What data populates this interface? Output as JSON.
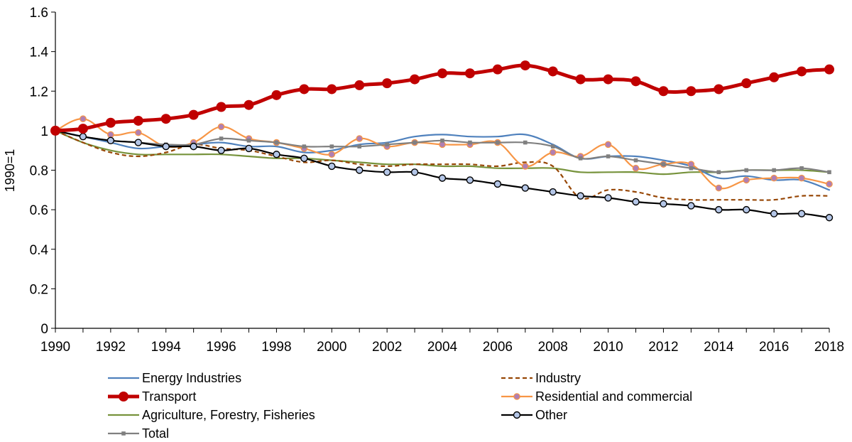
{
  "chart_data": {
    "type": "line",
    "title": "",
    "xlabel": "",
    "ylabel": "1990=1",
    "xlim": [
      1990,
      2018
    ],
    "ylim": [
      0,
      1.6
    ],
    "y_ticks": [
      "0",
      "0.2",
      "0.4",
      "0.6",
      "0.8",
      "1",
      "1.2",
      "1.4",
      "1.6"
    ],
    "x_ticks": [
      "1990",
      "1992",
      "1994",
      "1996",
      "1998",
      "2000",
      "2002",
      "2004",
      "2006",
      "2008",
      "2010",
      "2012",
      "2014",
      "2016",
      "2018"
    ],
    "grid": false,
    "legend_position": "bottom",
    "x": [
      1990,
      1991,
      1992,
      1993,
      1994,
      1995,
      1996,
      1997,
      1998,
      1999,
      2000,
      2001,
      2002,
      2003,
      2004,
      2005,
      2006,
      2007,
      2008,
      2009,
      2010,
      2011,
      2012,
      2013,
      2014,
      2015,
      2016,
      2017,
      2018
    ],
    "series": [
      {
        "name": "Energy Industries",
        "color": "#4f81bd",
        "style": "solid",
        "marker": "none",
        "values": [
          1.0,
          0.97,
          0.94,
          0.91,
          0.92,
          0.93,
          0.94,
          0.92,
          0.92,
          0.89,
          0.9,
          0.93,
          0.94,
          0.97,
          0.98,
          0.97,
          0.97,
          0.98,
          0.93,
          0.86,
          0.87,
          0.87,
          0.85,
          0.82,
          0.76,
          0.77,
          0.75,
          0.75,
          0.7
        ]
      },
      {
        "name": "Industry",
        "color": "#974706",
        "style": "dashed",
        "marker": "none",
        "values": [
          1.0,
          0.94,
          0.89,
          0.87,
          0.89,
          0.93,
          0.91,
          0.9,
          0.87,
          0.84,
          0.85,
          0.83,
          0.82,
          0.83,
          0.83,
          0.83,
          0.82,
          0.84,
          0.82,
          0.66,
          0.7,
          0.69,
          0.66,
          0.65,
          0.65,
          0.65,
          0.65,
          0.67,
          0.67
        ]
      },
      {
        "name": "Transport",
        "color": "#c00000",
        "style": "solid",
        "marker": "circle-large",
        "values": [
          1.0,
          1.01,
          1.04,
          1.05,
          1.06,
          1.08,
          1.12,
          1.13,
          1.18,
          1.21,
          1.21,
          1.23,
          1.24,
          1.26,
          1.29,
          1.29,
          1.31,
          1.33,
          1.3,
          1.26,
          1.26,
          1.25,
          1.2,
          1.2,
          1.21,
          1.24,
          1.27,
          1.3,
          1.31
        ]
      },
      {
        "name": "Residential and commercial",
        "color": "#f79646",
        "style": "solid",
        "marker": "circle-small",
        "values": [
          1.0,
          1.06,
          0.98,
          0.99,
          0.92,
          0.94,
          1.02,
          0.96,
          0.94,
          0.91,
          0.88,
          0.96,
          0.92,
          0.94,
          0.93,
          0.93,
          0.94,
          0.82,
          0.89,
          0.87,
          0.93,
          0.81,
          0.83,
          0.83,
          0.71,
          0.75,
          0.76,
          0.76,
          0.73
        ]
      },
      {
        "name": "Agriculture, Forestry, Fisheries",
        "color": "#77933c",
        "style": "solid",
        "marker": "none",
        "values": [
          1.0,
          0.94,
          0.9,
          0.88,
          0.88,
          0.88,
          0.88,
          0.87,
          0.86,
          0.86,
          0.85,
          0.84,
          0.83,
          0.83,
          0.82,
          0.82,
          0.81,
          0.81,
          0.81,
          0.79,
          0.79,
          0.79,
          0.78,
          0.79,
          0.79,
          0.8,
          0.8,
          0.8,
          0.79
        ]
      },
      {
        "name": "Other",
        "color": "#000000",
        "style": "solid",
        "marker": "circle-open",
        "values": [
          1.0,
          0.97,
          0.95,
          0.94,
          0.92,
          0.92,
          0.9,
          0.91,
          0.88,
          0.86,
          0.82,
          0.8,
          0.79,
          0.79,
          0.76,
          0.75,
          0.73,
          0.71,
          0.69,
          0.67,
          0.66,
          0.64,
          0.63,
          0.62,
          0.6,
          0.6,
          0.58,
          0.58,
          0.56
        ]
      },
      {
        "name": "Total",
        "color": "#808080",
        "style": "solid",
        "marker": "square-small",
        "values": [
          1.0,
          0.97,
          0.95,
          0.94,
          0.93,
          0.93,
          0.96,
          0.95,
          0.94,
          0.92,
          0.92,
          0.92,
          0.93,
          0.94,
          0.95,
          0.94,
          0.94,
          0.94,
          0.92,
          0.86,
          0.87,
          0.85,
          0.83,
          0.81,
          0.79,
          0.8,
          0.8,
          0.81,
          0.79
        ]
      }
    ]
  }
}
